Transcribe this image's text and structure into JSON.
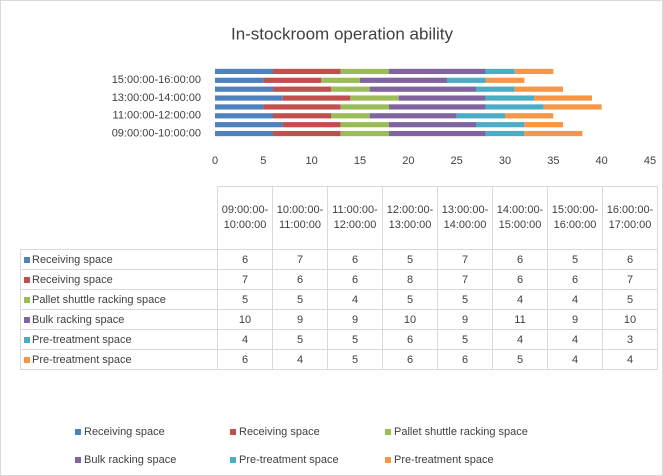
{
  "chart_data": {
    "type": "stacked_bar_horizontal",
    "title": "In-stockroom operation ability",
    "categories": [
      "09:00:00-10:00:00",
      "10:00:00-11:00:00",
      "11:00:00-12:00:00",
      "12:00:00-13:00:00",
      "13:00:00-14:00:00",
      "14:00:00-15:00:00",
      "15:00:00-16:00:00",
      "16:00:00-17:00:00"
    ],
    "series": [
      {
        "name": "Receiving space",
        "color": "#4f81bd",
        "values": [
          6,
          7,
          6,
          5,
          7,
          6,
          5,
          6
        ]
      },
      {
        "name": "Receiving space",
        "color": "#c0504d",
        "values": [
          7,
          6,
          6,
          8,
          7,
          6,
          6,
          7
        ]
      },
      {
        "name": "Pallet shuttle racking  space",
        "color": "#9bbb59",
        "values": [
          5,
          5,
          4,
          5,
          5,
          4,
          4,
          5
        ]
      },
      {
        "name": "Bulk racking space",
        "color": "#8064a2",
        "values": [
          10,
          9,
          9,
          10,
          9,
          11,
          9,
          10
        ]
      },
      {
        "name": "Pre-treatment space",
        "color": "#4bacc6",
        "values": [
          4,
          5,
          5,
          6,
          5,
          4,
          4,
          3
        ]
      },
      {
        "name": "Pre-treatment space",
        "color": "#f79646",
        "values": [
          6,
          4,
          5,
          6,
          6,
          5,
          4,
          4
        ]
      }
    ],
    "xlim": [
      0,
      45
    ],
    "xticks": [
      0,
      5,
      10,
      15,
      20,
      25,
      30,
      35,
      40,
      45
    ],
    "grid": false
  }
}
